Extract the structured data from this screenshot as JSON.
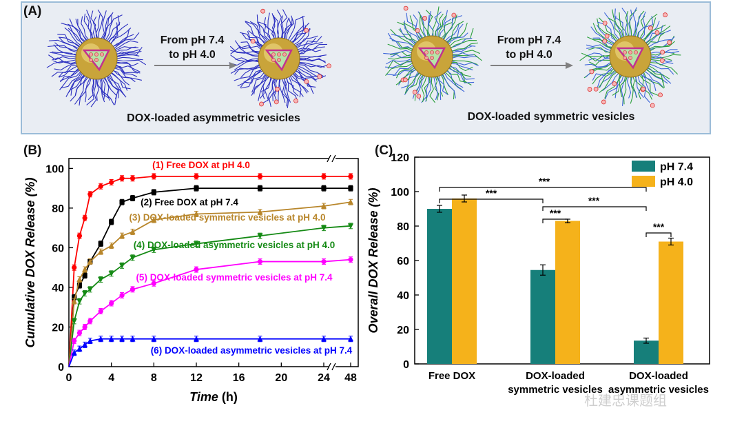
{
  "panel_a": {
    "label": "(A)",
    "left_arrow_text": [
      "From pH 7.4",
      "to pH 4.0"
    ],
    "right_arrow_text": [
      "From pH 7.4",
      "to pH 4.0"
    ],
    "left_caption": "DOX-loaded asymmetric vesicles",
    "right_caption": "DOX-loaded symmetric vesicles"
  },
  "panel_b": {
    "label": "(B)"
  },
  "panel_c": {
    "label": "(C)"
  },
  "watermark": "杜建忠课题组",
  "chart_data": [
    {
      "id": "B",
      "type": "line",
      "xlabel": "Time (h)",
      "ylabel": "Cumulative DOX Release (%)",
      "xticks": [
        "0",
        "4",
        "8",
        "12",
        "16",
        "20",
        "24",
        "48"
      ],
      "ylim": [
        0,
        105
      ],
      "yticks": [
        0,
        20,
        40,
        60,
        80,
        100
      ],
      "x": [
        0,
        0.5,
        1,
        1.5,
        2,
        3,
        4,
        5,
        6,
        8,
        12,
        18,
        24,
        48
      ],
      "series": [
        {
          "name": "(1) Free DOX at pH 4.0",
          "color": "#ff0000",
          "marker": "circle",
          "values": [
            0,
            50,
            66,
            75,
            87,
            91,
            93,
            95,
            95,
            96,
            96,
            96,
            96,
            96
          ]
        },
        {
          "name": "(2) Free DOX at pH 7.4",
          "color": "#000000",
          "marker": "square",
          "values": [
            0,
            35,
            41,
            46,
            53,
            62,
            73,
            83,
            85,
            88,
            90,
            90,
            90,
            90
          ]
        },
        {
          "name": "(3) DOX-loaded symmetric vesicles at pH 4.0",
          "color": "#b8862b",
          "marker": "triangle-up",
          "values": [
            0,
            33,
            44,
            49,
            53,
            58,
            61,
            66,
            68,
            74,
            77,
            78,
            81,
            83
          ]
        },
        {
          "name": "(4) DOX-loaded asymmetric vesicles at pH 4.0",
          "color": "#158a15",
          "marker": "triangle-down",
          "values": [
            0,
            23,
            33,
            37,
            39,
            44,
            47,
            51,
            55,
            59,
            62,
            66,
            70,
            71
          ]
        },
        {
          "name": "(5) DOX-loaded symmetric vesicles at pH 7.4",
          "color": "#ff00ff",
          "marker": "circle",
          "values": [
            0,
            13,
            17,
            20,
            23,
            28,
            32,
            36,
            39,
            42,
            49,
            53,
            53,
            54
          ]
        },
        {
          "name": "(6) DOX-loaded asymmetric vesicles at pH 7.4",
          "color": "#0000ff",
          "marker": "triangle-up",
          "values": [
            0,
            7,
            9,
            11,
            13,
            14,
            14,
            14,
            14,
            14,
            14,
            14,
            14,
            14
          ]
        }
      ]
    },
    {
      "id": "C",
      "type": "bar",
      "ylabel": "Overall DOX Release (%)",
      "ylim": [
        0,
        120
      ],
      "yticks": [
        0,
        20,
        40,
        60,
        80,
        100,
        120
      ],
      "categories": [
        [
          "Free DOX"
        ],
        [
          "DOX-loaded",
          "symmetric vesicles"
        ],
        [
          "DOX-loaded",
          "asymmetric vesicles"
        ]
      ],
      "series": [
        {
          "name": "pH 7.4",
          "color": "#167f7a",
          "values": [
            90,
            54.5,
            13.5
          ],
          "errors": [
            2,
            3,
            1.5
          ]
        },
        {
          "name": "pH 4.0",
          "color": "#f5b21b",
          "values": [
            96,
            83,
            71
          ],
          "errors": [
            2,
            1,
            2
          ]
        }
      ],
      "significance": "***"
    }
  ]
}
